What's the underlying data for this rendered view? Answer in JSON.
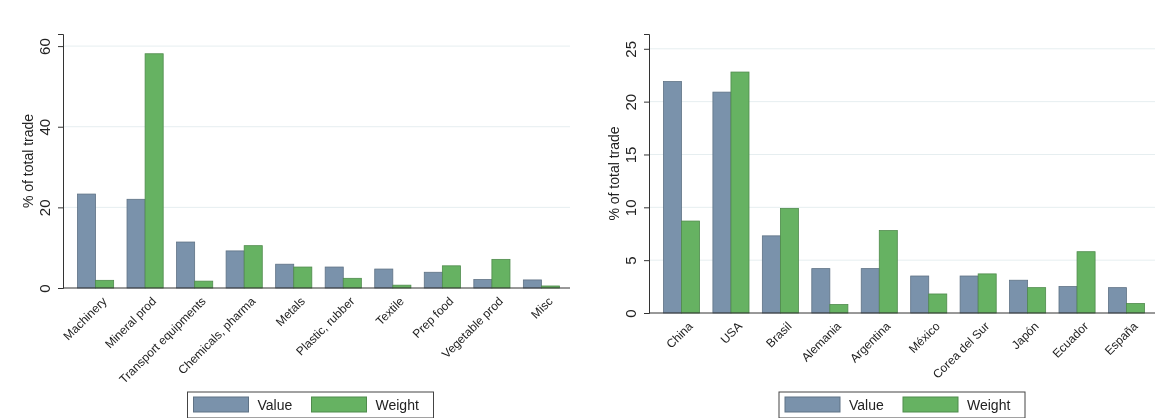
{
  "chart_data": [
    {
      "type": "bar",
      "ylabel": "% of total trade",
      "categories": [
        "Machinery",
        "Mineral prod",
        "Transport equipments",
        "Chemicals, pharma",
        "Metals",
        "Plastic, rubber",
        "Textile",
        "Prep food",
        "Vegetable prod",
        "Misc"
      ],
      "series": [
        {
          "name": "Value",
          "color": "#7a92ab",
          "values": [
            23.3,
            22.0,
            11.4,
            9.2,
            5.9,
            5.2,
            4.7,
            3.9,
            2.1,
            2.0
          ]
        },
        {
          "name": "Weight",
          "color": "#66b262",
          "values": [
            1.9,
            58.1,
            1.7,
            10.5,
            5.2,
            2.4,
            0.7,
            5.5,
            7.1,
            0.5
          ]
        }
      ],
      "ylim": [
        0,
        63
      ],
      "yticks": [
        0,
        20,
        40,
        60
      ],
      "grid": "y",
      "legend": "bottom"
    },
    {
      "type": "bar",
      "ylabel": "% of total trade",
      "categories": [
        "China",
        "USA",
        "Brasil",
        "Alemania",
        "Argentina",
        "México",
        "Corea del Sur",
        "Japón",
        "Ecuador",
        "España"
      ],
      "series": [
        {
          "name": "Value",
          "color": "#7a92ab",
          "values": [
            21.9,
            20.9,
            7.3,
            4.2,
            4.2,
            3.5,
            3.5,
            3.1,
            2.5,
            2.4
          ]
        },
        {
          "name": "Weight",
          "color": "#66b262",
          "values": [
            8.7,
            22.8,
            9.9,
            0.8,
            7.8,
            1.8,
            3.7,
            2.4,
            5.8,
            0.9
          ]
        }
      ],
      "ylim": [
        0,
        26.4
      ],
      "yticks": [
        0,
        5,
        10,
        15,
        20,
        25
      ],
      "grid": "y",
      "legend": "bottom"
    }
  ]
}
